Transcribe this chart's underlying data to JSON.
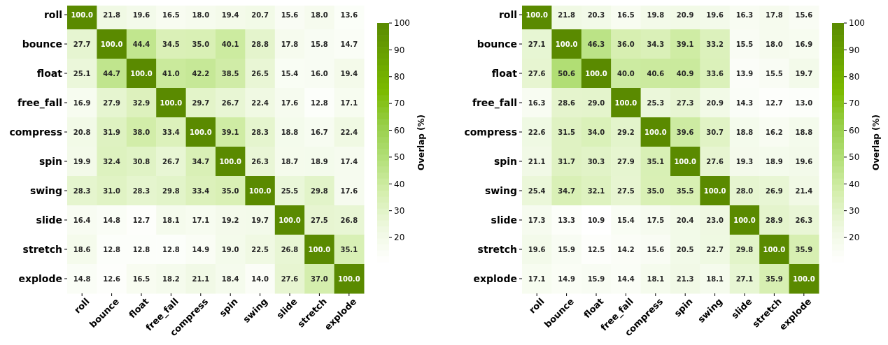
{
  "chart_data": [
    {
      "type": "heatmap",
      "clabel": "Overlap (%)",
      "categories": [
        "roll",
        "bounce",
        "float",
        "free_fall",
        "compress",
        "spin",
        "swing",
        "slide",
        "stretch",
        "explode"
      ],
      "y_categories": [
        "roll",
        "bounce",
        "float",
        "free_fall",
        "compress",
        "spin",
        "swing",
        "slide",
        "stretch",
        "explode"
      ],
      "clim": [
        10.9,
        100
      ],
      "cticks": [
        20,
        30,
        40,
        50,
        60,
        70,
        80,
        90,
        100
      ],
      "cells": [
        [
          100.0,
          21.8,
          19.6,
          16.5,
          18.0,
          19.4,
          20.7,
          15.6,
          18.0,
          13.6
        ],
        [
          27.7,
          100.0,
          44.4,
          34.5,
          35.0,
          40.1,
          28.8,
          17.8,
          15.8,
          14.7
        ],
        [
          25.1,
          44.7,
          100.0,
          41.0,
          42.2,
          38.5,
          26.5,
          15.4,
          16.0,
          19.4
        ],
        [
          16.9,
          27.9,
          32.9,
          100.0,
          29.7,
          26.7,
          22.4,
          17.6,
          12.8,
          17.1
        ],
        [
          20.8,
          31.9,
          38.0,
          33.4,
          100.0,
          39.1,
          28.3,
          18.8,
          16.7,
          22.4
        ],
        [
          19.9,
          32.4,
          30.8,
          26.7,
          34.7,
          100.0,
          26.3,
          18.7,
          18.9,
          17.4
        ],
        [
          28.3,
          31.0,
          28.3,
          29.8,
          33.4,
          35.0,
          100.0,
          25.5,
          29.8,
          17.6
        ],
        [
          16.4,
          14.8,
          12.7,
          18.1,
          17.1,
          19.2,
          19.7,
          100.0,
          27.5,
          26.8
        ],
        [
          18.6,
          12.8,
          12.8,
          12.8,
          14.9,
          19.0,
          22.5,
          26.8,
          100.0,
          35.1
        ],
        [
          14.8,
          12.6,
          16.5,
          18.2,
          21.1,
          18.4,
          14.0,
          27.6,
          37.0,
          100.0
        ]
      ],
      "cell_labels": [
        [
          "100.0",
          "21.8",
          "19.6",
          "16.5",
          "18.0",
          "19.4",
          "20.7",
          "15.6",
          "18.0",
          "13.6"
        ],
        [
          "27.7",
          "100.0",
          "44.4",
          "34.5",
          "35.0",
          "40.1",
          "28.8",
          "17.8",
          "15.8",
          "14.7"
        ],
        [
          "25.1",
          "44.7",
          "100.0",
          "41.0",
          "42.2",
          "38.5",
          "26.5",
          "15.4",
          "16.0",
          "19.4"
        ],
        [
          "16.9",
          "27.9",
          "32.9",
          "100.0",
          "29.7",
          "26.7",
          "22.4",
          "17.6",
          "12.8",
          "17.1"
        ],
        [
          "20.8",
          "31.9",
          "38.0",
          "33.4",
          "100.0",
          "39.1",
          "28.3",
          "18.8",
          "16.7",
          "22.4"
        ],
        [
          "19.9",
          "32.4",
          "30.8",
          "26.7",
          "34.7",
          "100.0",
          "26.3",
          "18.7",
          "18.9",
          "17.4"
        ],
        [
          "28.3",
          "31.0",
          "28.3",
          "29.8",
          "33.4",
          "35.0",
          "100.0",
          "25.5",
          "29.8",
          "17.6"
        ],
        [
          "16.4",
          "14.8",
          "12.7",
          "18.1",
          "17.1",
          "19.2",
          "19.7",
          "100.0",
          "27.5",
          "26.8"
        ],
        [
          "18.6",
          "12.8",
          "12.8",
          "12.8",
          "14.9",
          "19.0",
          "22.5",
          "26.8",
          "100.0",
          "35.1"
        ],
        [
          "14.8",
          "12.6",
          "16.5",
          "18.2",
          "21.1",
          "18.4",
          "14.0",
          "27.6",
          "37.0",
          "100.0"
        ]
      ]
    },
    {
      "type": "heatmap",
      "clabel": "Overlap (%)",
      "categories": [
        "roll",
        "bounce",
        "float",
        "free_fall",
        "compress",
        "spin",
        "swing",
        "slide",
        "stretch",
        "explode"
      ],
      "y_categories": [
        "roll",
        "bounce",
        "float",
        "free_fall",
        "compress",
        "spin",
        "swing",
        "slide",
        "stretch",
        "explode"
      ],
      "clim": [
        10.9,
        100
      ],
      "cticks": [
        20,
        30,
        40,
        50,
        60,
        70,
        80,
        90,
        100
      ],
      "cells": [
        [
          100.0,
          21.8,
          20.3,
          16.5,
          19.8,
          20.9,
          19.6,
          16.3,
          17.8,
          15.6
        ],
        [
          27.1,
          100.0,
          46.3,
          36.0,
          34.3,
          39.1,
          33.2,
          15.5,
          18.0,
          16.9
        ],
        [
          27.6,
          50.6,
          100.0,
          40.0,
          40.6,
          40.9,
          33.6,
          13.9,
          15.5,
          19.7
        ],
        [
          16.3,
          28.6,
          29.0,
          100.0,
          25.3,
          27.3,
          20.9,
          14.3,
          12.7,
          13.0
        ],
        [
          22.6,
          31.5,
          34.0,
          29.2,
          100.0,
          39.6,
          30.7,
          18.8,
          16.2,
          18.8
        ],
        [
          21.1,
          31.7,
          30.3,
          27.9,
          35.1,
          100.0,
          27.6,
          19.3,
          18.9,
          19.6
        ],
        [
          25.4,
          34.7,
          32.1,
          27.5,
          35.0,
          35.5,
          100.0,
          28.0,
          26.9,
          21.4
        ],
        [
          17.3,
          13.3,
          10.9,
          15.4,
          17.5,
          20.4,
          23.0,
          100.0,
          28.9,
          26.3
        ],
        [
          19.6,
          15.9,
          12.5,
          14.2,
          15.6,
          20.5,
          22.7,
          29.8,
          100.0,
          35.9
        ],
        [
          17.1,
          14.9,
          15.9,
          14.4,
          18.1,
          21.3,
          18.1,
          27.1,
          35.9,
          100.0
        ]
      ],
      "cell_labels": [
        [
          "100.0",
          "21.8",
          "20.3",
          "16.5",
          "19.8",
          "20.9",
          "19.6",
          "16.3",
          "17.8",
          "15.6"
        ],
        [
          "27.1",
          "100.0",
          "46.3",
          "36.0",
          "34.3",
          "39.1",
          "33.2",
          "15.5",
          "18.0",
          "16.9"
        ],
        [
          "27.6",
          "50.6",
          "100.0",
          "40.0",
          "40.6",
          "40.9",
          "33.6",
          "13.9",
          "15.5",
          "19.7"
        ],
        [
          "16.3",
          "28.6",
          "29.0",
          "100.0",
          "25.3",
          "27.3",
          "20.9",
          "14.3",
          "12.7",
          "13.0"
        ],
        [
          "22.6",
          "31.5",
          "34.0",
          "29.2",
          "100.0",
          "39.6",
          "30.7",
          "18.8",
          "16.2",
          "18.8"
        ],
        [
          "21.1",
          "31.7",
          "30.3",
          "27.9",
          "35.1",
          "100.0",
          "27.6",
          "19.3",
          "18.9",
          "19.6"
        ],
        [
          "25.4",
          "34.7",
          "32.1",
          "27.5",
          "35.0",
          "35.5",
          "100.0",
          "28.0",
          "26.9",
          "21.4"
        ],
        [
          "17.3",
          "13.3",
          "10.9",
          "15.4",
          "17.5",
          "20.4",
          "23.0",
          "100.0",
          "28.9",
          "26.3"
        ],
        [
          "19.6",
          "15.9",
          "12.5",
          "14.2",
          "15.6",
          "20.5",
          "22.7",
          "29.8",
          "100.0",
          "35.9"
        ],
        [
          "17.1",
          "14.9",
          "15.9",
          "14.4",
          "18.1",
          "21.3",
          "18.1",
          "27.1",
          "35.9",
          "100.0"
        ]
      ]
    }
  ]
}
